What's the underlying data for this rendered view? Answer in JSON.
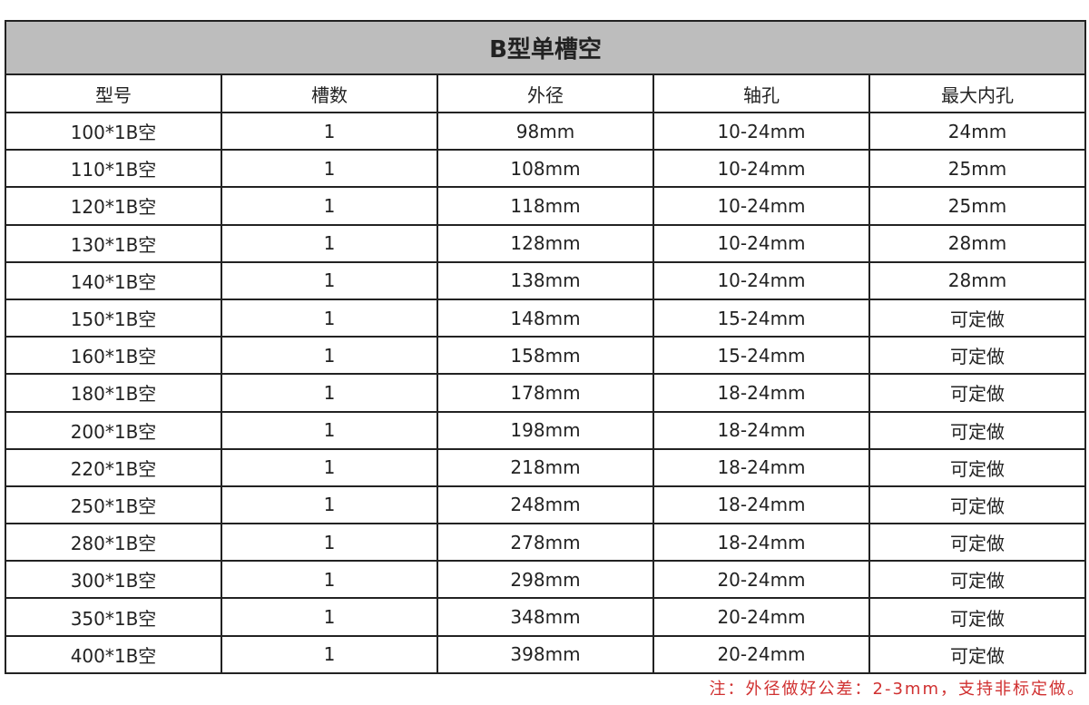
{
  "title": "B型单槽空",
  "columns": [
    "型号",
    "槽数",
    "外径",
    "轴孔",
    "最大内孔"
  ],
  "rows": [
    [
      "100*1B空",
      "1",
      "98mm",
      "10-24mm",
      "24mm"
    ],
    [
      "110*1B空",
      "1",
      "108mm",
      "10-24mm",
      "25mm"
    ],
    [
      "120*1B空",
      "1",
      "118mm",
      "10-24mm",
      "25mm"
    ],
    [
      "130*1B空",
      "1",
      "128mm",
      "10-24mm",
      "28mm"
    ],
    [
      "140*1B空",
      "1",
      "138mm",
      "10-24mm",
      "28mm"
    ],
    [
      "150*1B空",
      "1",
      "148mm",
      "15-24mm",
      "可定做"
    ],
    [
      "160*1B空",
      "1",
      "158mm",
      "15-24mm",
      "可定做"
    ],
    [
      "180*1B空",
      "1",
      "178mm",
      "18-24mm",
      "可定做"
    ],
    [
      "200*1B空",
      "1",
      "198mm",
      "18-24mm",
      "可定做"
    ],
    [
      "220*1B空",
      "1",
      "218mm",
      "18-24mm",
      "可定做"
    ],
    [
      "250*1B空",
      "1",
      "248mm",
      "18-24mm",
      "可定做"
    ],
    [
      "280*1B空",
      "1",
      "278mm",
      "18-24mm",
      "可定做"
    ],
    [
      "300*1B空",
      "1",
      "298mm",
      "20-24mm",
      "可定做"
    ],
    [
      "350*1B空",
      "1",
      "348mm",
      "20-24mm",
      "可定做"
    ],
    [
      "400*1B空",
      "1",
      "398mm",
      "20-24mm",
      "可定做"
    ]
  ],
  "note": "注：外径做好公差：2-3mm，支持非标定做。",
  "colors": {
    "title_bg": "#bdbdbd",
    "note": "#d03030",
    "border": "#222222"
  }
}
